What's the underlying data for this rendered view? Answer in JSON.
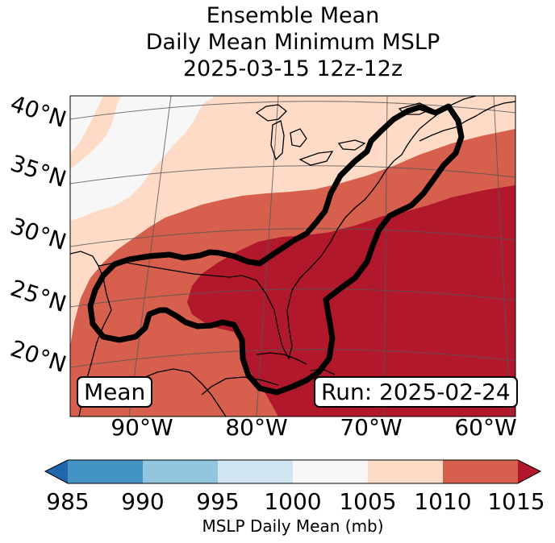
{
  "title": {
    "line1": "Ensemble Mean",
    "line2": "Daily Mean Minimum MSLP",
    "line3": "2025-03-15 12z-12z"
  },
  "map": {
    "latitude_labels": [
      "40°N",
      "35°N",
      "30°N",
      "25°N",
      "20°N"
    ],
    "longitude_labels": [
      "90°W",
      "80°W",
      "70°W",
      "60°W"
    ],
    "mean_label": "Mean",
    "run_label": "Run: 2025-02-24"
  },
  "colorbar": {
    "ticks": [
      "985",
      "990",
      "995",
      "1000",
      "1005",
      "1010",
      "1015"
    ],
    "label": "MSLP Daily Mean (mb)",
    "colors": {
      "under": "#2166ac",
      "985-990": "#4393c3",
      "990-995": "#92c5de",
      "995-1000": "#d1e5f0",
      "1000-1005": "#f7f7f7",
      "1005-1010": "#fddbc7",
      "1010-1015": "#d6604d",
      "over": "#b2182b"
    }
  }
}
